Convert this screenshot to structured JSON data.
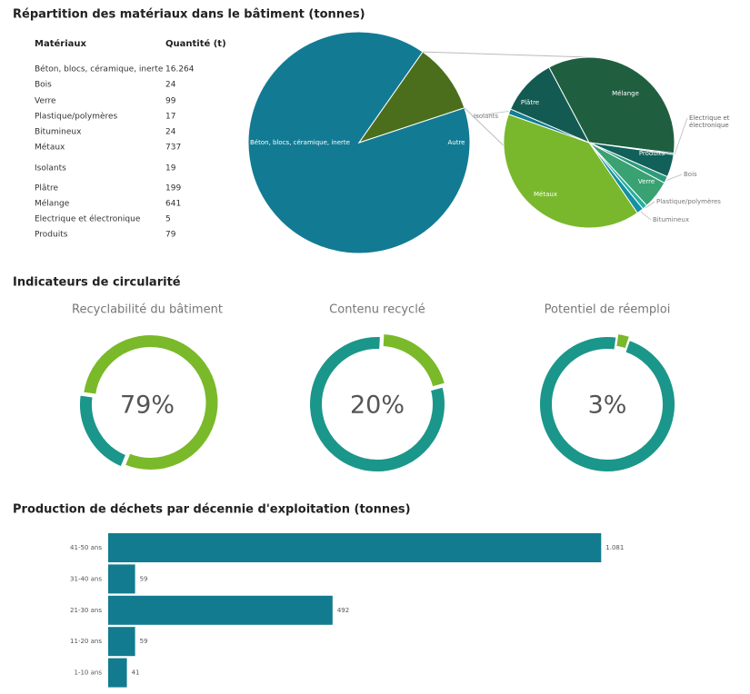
{
  "headings": [
    "Répartition des matériaux dans le bâtiment (tonnes)",
    "Indicateurs de circularité",
    "Production de déchets par décennie d'exploitation (tonnes)"
  ],
  "table": {
    "columns": [
      "Matériaux",
      "Quantité (t)"
    ],
    "rows": [
      [
        "Béton, blocs, céramique, inerte",
        "16.264"
      ],
      [
        "Bois",
        "24"
      ],
      [
        "Verre",
        "99"
      ],
      [
        "Plastique/polymères",
        "17"
      ],
      [
        "Bitumineux",
        "24"
      ],
      [
        "Métaux",
        "737"
      ],
      [
        "Isolants",
        "19"
      ],
      [
        "Plâtre",
        "199"
      ],
      [
        "Mélange",
        "641"
      ],
      [
        "Electrique et électronique",
        "5"
      ],
      [
        "Produits",
        "79"
      ]
    ]
  },
  "chart_data": [
    {
      "type": "pie",
      "categories": [
        "Béton, blocs, céramique, inerte",
        "Autre"
      ],
      "values": [
        16264,
        1844
      ],
      "colors": [
        "#127b93",
        "#4a6e1b"
      ]
    },
    {
      "type": "pie",
      "categories": [
        "Mélange",
        "Electrique et électronique",
        "Produits",
        "Bois",
        "Verre",
        "Plastique/polymères",
        "Bitumineux",
        "Métaux",
        "Isolants",
        "Plâtre"
      ],
      "values": [
        641,
        5,
        79,
        24,
        99,
        17,
        24,
        737,
        19,
        199
      ],
      "colors": [
        "#1f5f3f",
        "#0f5d5c",
        "#11605a",
        "#2c9b7b",
        "#3aa172",
        "#25b0a0",
        "#1690a3",
        "#79b82c",
        "#127e93",
        "#135b52"
      ]
    },
    {
      "type": "donut",
      "title": "Recyclabilité du bâtiment",
      "values": [
        79,
        21
      ],
      "center_label": "79%",
      "colors": [
        "#7ab92a",
        "#1b968a"
      ]
    },
    {
      "type": "donut",
      "title": "Contenu recyclé",
      "values": [
        20,
        80
      ],
      "center_label": "20%",
      "colors": [
        "#7ab92a",
        "#1b968a"
      ]
    },
    {
      "type": "donut",
      "title": "Potentiel de réemploi",
      "values": [
        3,
        97
      ],
      "center_label": "3%",
      "colors": [
        "#7ab92a",
        "#1b968a"
      ]
    },
    {
      "type": "hbar",
      "categories": [
        "41-50 ans",
        "31-40 ans",
        "21-30 ans",
        "11-20 ans",
        "1-10 ans"
      ],
      "values": [
        1081,
        59,
        492,
        59,
        41
      ],
      "value_labels": [
        "1.081",
        "59",
        "492",
        "59",
        "41"
      ],
      "xlim": [
        0,
        1200
      ],
      "color": "#127b8f"
    }
  ]
}
